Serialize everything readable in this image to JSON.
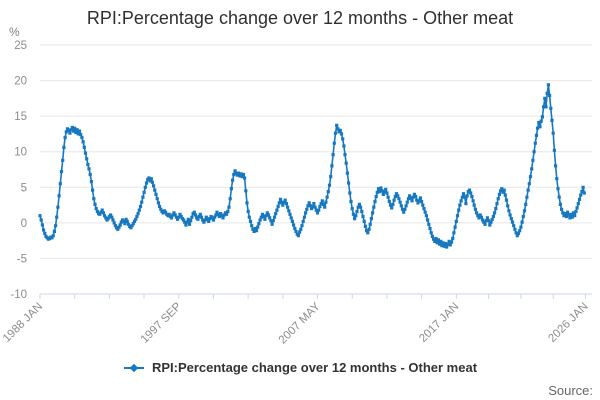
{
  "header": {
    "title": "RPI:Percentage change over 12 months - Other meat"
  },
  "y_axis": {
    "unit_label": "%",
    "tick_values": [
      25,
      20,
      15,
      10,
      5,
      0,
      -5,
      -10
    ],
    "min": -10,
    "max": 25
  },
  "x_axis": {
    "labeled_ticks": [
      {
        "month_index": 0,
        "label": "1988 JAN"
      },
      {
        "month_index": 116,
        "label": "1997 SEP"
      },
      {
        "month_index": 232,
        "label": "2007 MAY"
      },
      {
        "month_index": 348,
        "label": "2017 JAN"
      },
      {
        "month_index": 456,
        "label": "2026 JAN"
      }
    ],
    "minor_ticks_between_labels": 3
  },
  "legend": {
    "label": "RPI:Percentage change over 12 months - Other meat"
  },
  "source": {
    "label": "Source:"
  },
  "colors": {
    "series": "#1878bf",
    "grid": "#e6e6e6",
    "axis_line": "#ccd6eb",
    "tick_text": "#8c8c8c",
    "title_text": "#2f2f2f",
    "legend_text": "#333333",
    "source_text": "#666666",
    "background": "#ffffff"
  },
  "chart_data": {
    "type": "line",
    "title": "RPI:Percentage change over 12 months - Other meat",
    "unit": "%",
    "frequency": "monthly",
    "x_start": "1988 JAN",
    "x_end": "2025 DEC",
    "ylim": [
      -10,
      25
    ],
    "grid": "horizontal-only",
    "legend_position": "bottom-center",
    "x_tick_labels": [
      "1988 JAN",
      "1997 SEP",
      "2007 MAY",
      "2017 JAN",
      "2026 JAN"
    ],
    "series": [
      {
        "name": "RPI:Percentage change over 12 months - Other meat",
        "marker": "square",
        "values": [
          1.0,
          0.4,
          -0.3,
          -1.0,
          -1.5,
          -1.9,
          -2.1,
          -2.3,
          -2.2,
          -2.0,
          -2.1,
          -1.8,
          -1.2,
          -0.4,
          0.8,
          2.2,
          3.8,
          5.5,
          7.2,
          8.8,
          10.6,
          12.0,
          12.8,
          13.2,
          13.0,
          12.6,
          13.1,
          13.4,
          12.9,
          13.3,
          12.7,
          13.1,
          12.5,
          12.9,
          12.4,
          12.0,
          11.4,
          10.6,
          9.8,
          9.0,
          8.2,
          7.6,
          6.8,
          5.8,
          4.6,
          3.4,
          2.6,
          2.0,
          1.6,
          1.3,
          1.2,
          1.5,
          1.8,
          1.4,
          1.0,
          0.7,
          0.4,
          0.6,
          0.9,
          1.1,
          0.8,
          0.4,
          0.0,
          -0.4,
          -0.7,
          -0.9,
          -0.6,
          -0.3,
          0.1,
          0.4,
          0.2,
          -0.1,
          0.5,
          0.2,
          -0.2,
          -0.5,
          -0.7,
          -0.4,
          -0.1,
          0.2,
          0.5,
          0.9,
          1.3,
          1.8,
          2.3,
          2.9,
          3.6,
          4.3,
          5.0,
          5.6,
          6.1,
          6.3,
          5.9,
          6.2,
          5.7,
          5.2,
          4.6,
          4.0,
          3.4,
          2.8,
          2.3,
          1.9,
          1.6,
          1.4,
          1.7,
          1.5,
          1.2,
          1.0,
          1.2,
          0.9,
          0.7,
          1.1,
          1.4,
          1.1,
          0.8,
          0.5,
          0.8,
          1.2,
          0.9,
          0.6,
          0.4,
          0.1,
          -0.3,
          0.1,
          0.5,
          -0.2,
          0.3,
          0.8,
          1.3,
          1.5,
          1.1,
          0.7,
          0.5,
          0.9,
          1.2,
          0.8,
          0.4,
          0.1,
          0.4,
          0.8,
          0.5,
          0.2,
          0.6,
          0.9,
          0.7,
          0.4,
          0.8,
          1.1,
          1.5,
          1.2,
          0.9,
          1.3,
          1.0,
          0.7,
          1.1,
          1.4,
          1.2,
          1.6,
          2.2,
          3.4,
          4.8,
          6.0,
          6.8,
          7.3,
          7.0,
          6.7,
          7.0,
          6.6,
          6.9,
          6.5,
          6.8,
          6.3,
          4.5,
          2.8,
          1.6,
          0.8,
          0.2,
          -0.4,
          -0.9,
          -1.2,
          -0.8,
          -1.1,
          -0.6,
          -0.1,
          0.4,
          0.8,
          1.2,
          0.9,
          0.5,
          1.0,
          1.4,
          1.1,
          0.7,
          0.3,
          -0.2,
          0.3,
          0.8,
          1.3,
          1.8,
          2.3,
          2.8,
          3.3,
          2.9,
          2.5,
          2.9,
          3.2,
          2.7,
          2.2,
          1.7,
          1.2,
          0.7,
          0.2,
          -0.3,
          -0.8,
          -1.2,
          -1.6,
          -1.8,
          -1.3,
          -0.9,
          -0.4,
          0.2,
          0.8,
          1.4,
          1.9,
          2.4,
          2.8,
          2.4,
          2.0,
          2.3,
          2.7,
          2.2,
          1.8,
          1.4,
          1.8,
          2.3,
          2.7,
          3.1,
          2.6,
          2.2,
          2.9,
          3.6,
          4.4,
          5.3,
          6.5,
          8.0,
          9.6,
          11.2,
          12.6,
          13.7,
          13.2,
          12.8,
          13.0,
          12.5,
          11.8,
          10.8,
          9.6,
          8.4,
          7.0,
          5.6,
          4.2,
          3.0,
          2.0,
          1.2,
          0.6,
          1.0,
          1.6,
          2.2,
          2.6,
          2.2,
          1.6,
          0.9,
          0.2,
          -0.5,
          -1.1,
          -1.4,
          -0.9,
          -0.2,
          0.6,
          1.4,
          2.2,
          3.0,
          3.7,
          4.3,
          4.8,
          4.4,
          4.9,
          4.5,
          4.0,
          4.4,
          4.7,
          4.2,
          3.6,
          3.0,
          2.5,
          2.1,
          2.6,
          3.2,
          3.7,
          4.1,
          3.8,
          3.4,
          2.9,
          2.4,
          1.9,
          1.5,
          1.9,
          2.4,
          2.9,
          3.4,
          3.8,
          3.5,
          3.1,
          3.6,
          4.0,
          3.7,
          3.2,
          2.8,
          3.1,
          3.5,
          3.0,
          2.5,
          2.0,
          1.5,
          1.0,
          0.4,
          -0.2,
          -0.8,
          -1.4,
          -1.9,
          -2.3,
          -2.6,
          -2.2,
          -2.8,
          -2.4,
          -3.0,
          -2.6,
          -3.2,
          -2.8,
          -3.3,
          -2.9,
          -3.4,
          -3.0,
          -2.6,
          -3.1,
          -2.7,
          -2.2,
          -1.4,
          -0.6,
          0.2,
          1.0,
          1.8,
          2.5,
          3.1,
          3.6,
          4.1,
          3.6,
          2.7,
          3.8,
          4.4,
          4.6,
          4.2,
          3.7,
          3.1,
          2.5,
          1.9,
          1.4,
          1.0,
          0.7,
          1.1,
          0.8,
          0.4,
          0.1,
          -0.2,
          0.3,
          0.7,
          0.3,
          -0.3,
          0.1,
          0.5,
          0.9,
          1.4,
          2.0,
          2.7,
          3.4,
          4.0,
          4.5,
          4.8,
          4.3,
          4.6,
          3.9,
          3.2,
          2.4,
          1.7,
          1.1,
          0.6,
          0.1,
          -0.4,
          -0.9,
          -1.4,
          -1.8,
          -1.5,
          -1.1,
          -0.6,
          0.1,
          0.9,
          1.7,
          2.6,
          3.6,
          4.6,
          5.5,
          6.5,
          7.6,
          8.8,
          10.0,
          11.2,
          12.3,
          13.3,
          14.1,
          13.5,
          14.3,
          14.9,
          16.3,
          17.5,
          16.3,
          18.2,
          19.4,
          17.9,
          16.1,
          14.4,
          12.6,
          10.2,
          8.0,
          6.2,
          4.8,
          3.6,
          2.6,
          1.9,
          1.4,
          1.0,
          1.3,
          0.9,
          1.5,
          1.1,
          0.7,
          1.2,
          0.8,
          1.4,
          1.0,
          1.6,
          2.1,
          2.7,
          3.3,
          3.9,
          4.4,
          5.0,
          4.2
        ]
      }
    ]
  }
}
